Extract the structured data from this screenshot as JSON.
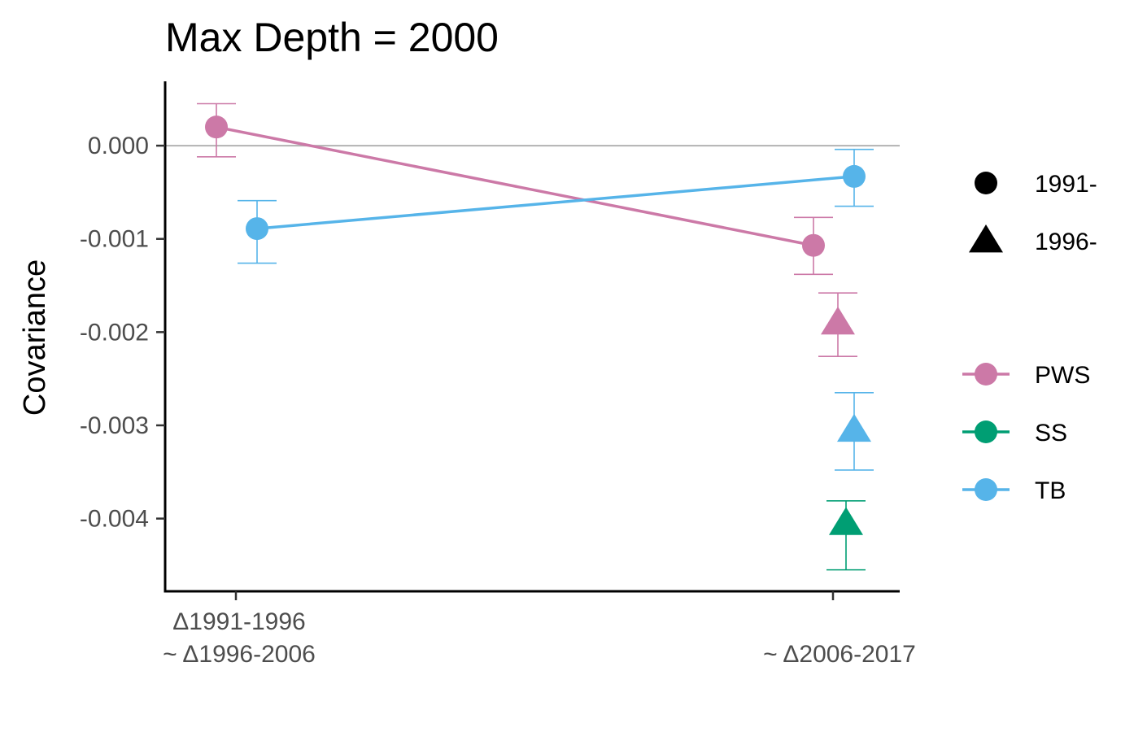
{
  "chart_data": {
    "type": "scatter",
    "title": "Max Depth = 2000",
    "xlabel": "",
    "ylabel": "Covariance",
    "x_categories": [
      [
        "Δ1991-1996",
        "~ Δ1996-2006"
      ],
      [
        "~ Δ2006-2017"
      ]
    ],
    "y_ticks": [
      0.0,
      -0.001,
      -0.002,
      -0.003,
      -0.004
    ],
    "y_tick_labels": [
      "0.000",
      "-0.001",
      "-0.002",
      "-0.003",
      "-0.004"
    ],
    "ylim": [
      -0.00478,
      0.00069
    ],
    "reference_line_y": 0,
    "grid": false,
    "colors": {
      "PWS": "#CC79A7",
      "SS": "#009E73",
      "TB": "#56B4E9"
    },
    "shape_legend": [
      {
        "label": "1991-",
        "shape": "circle"
      },
      {
        "label": "1996-",
        "shape": "triangle"
      }
    ],
    "color_legend": [
      {
        "label": "PWS"
      },
      {
        "label": "SS"
      },
      {
        "label": "TB"
      }
    ],
    "points": [
      {
        "series": "PWS",
        "shape": "circle",
        "x": 1,
        "y": 0.0002,
        "ymin": -0.00012,
        "ymax": 0.00045
      },
      {
        "series": "TB",
        "shape": "circle",
        "x": 1,
        "y": -0.00089,
        "ymin": -0.00126,
        "ymax": -0.00059
      },
      {
        "series": "PWS",
        "shape": "circle",
        "x": 2,
        "y": -0.00107,
        "ymin": -0.00138,
        "ymax": -0.00077
      },
      {
        "series": "TB",
        "shape": "circle",
        "x": 2,
        "y": -0.00033,
        "ymin": -0.00065,
        "ymax": -4e-05
      },
      {
        "series": "PWS",
        "shape": "triangle",
        "x": 2,
        "y": -0.0019,
        "ymin": -0.00226,
        "ymax": -0.00158
      },
      {
        "series": "TB",
        "shape": "triangle",
        "x": 2,
        "y": -0.00305,
        "ymin": -0.00348,
        "ymax": -0.00265
      },
      {
        "series": "SS",
        "shape": "triangle",
        "x": 2,
        "y": -0.00405,
        "ymin": -0.00455,
        "ymax": -0.00381
      }
    ],
    "lines": [
      {
        "series": "PWS",
        "from_point": 0,
        "to_point": 2
      },
      {
        "series": "TB",
        "from_point": 1,
        "to_point": 3
      }
    ]
  }
}
